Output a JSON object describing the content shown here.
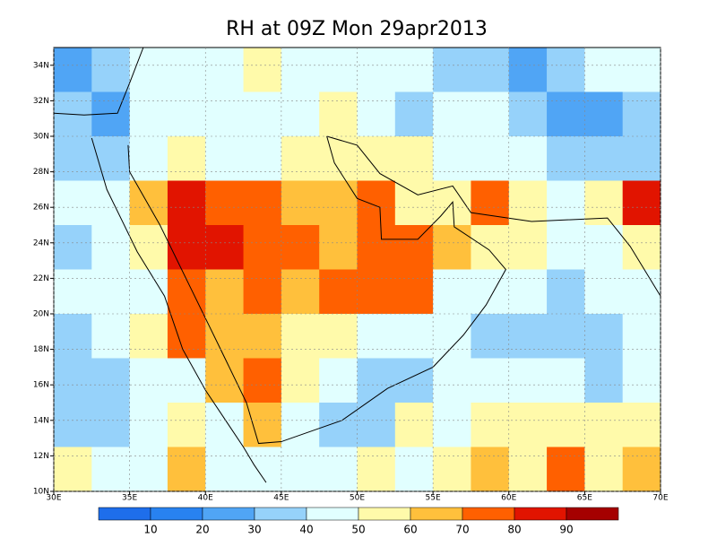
{
  "chart_data": {
    "type": "map",
    "title": "RH at 09Z Mon 29apr2013",
    "xlim": [
      30,
      70
    ],
    "ylim": [
      10,
      35
    ],
    "xticks": [
      {
        "value": 30,
        "label": "30E"
      },
      {
        "value": 35,
        "label": "35E"
      },
      {
        "value": 40,
        "label": "40E"
      },
      {
        "value": 45,
        "label": "45E"
      },
      {
        "value": 50,
        "label": "50E"
      },
      {
        "value": 55,
        "label": "55E"
      },
      {
        "value": 60,
        "label": "60E"
      },
      {
        "value": 65,
        "label": "65E"
      },
      {
        "value": 70,
        "label": "70E"
      }
    ],
    "yticks": [
      {
        "value": 10,
        "label": "10N"
      },
      {
        "value": 12,
        "label": "12N"
      },
      {
        "value": 14,
        "label": "14N"
      },
      {
        "value": 16,
        "label": "16N"
      },
      {
        "value": 18,
        "label": "18N"
      },
      {
        "value": 20,
        "label": "20N"
      },
      {
        "value": 22,
        "label": "22N"
      },
      {
        "value": 24,
        "label": "24N"
      },
      {
        "value": 26,
        "label": "26N"
      },
      {
        "value": 28,
        "label": "28N"
      },
      {
        "value": 30,
        "label": "30N"
      },
      {
        "value": 32,
        "label": "32N"
      },
      {
        "value": 34,
        "label": "34N"
      }
    ],
    "grid": true,
    "colorbar": {
      "levels": [
        10,
        20,
        30,
        40,
        50,
        60,
        70,
        80,
        90
      ],
      "colors": [
        "#1464d2",
        "#1e6eeb",
        "#2882f0",
        "#50a5f5",
        "#96d2fa",
        "#e1ffff",
        "#fffaaa",
        "#ffc03c",
        "#ff6000",
        "#e11400",
        "#a50000"
      ]
    },
    "field": {
      "values": [
        [
          25,
          30,
          45,
          40,
          45,
          50,
          45,
          40,
          40,
          45,
          35,
          30,
          25,
          30,
          40,
          45
        ],
        [
          30,
          25,
          40,
          45,
          45,
          40,
          45,
          50,
          40,
          35,
          40,
          45,
          30,
          20,
          25,
          30
        ],
        [
          35,
          30,
          45,
          50,
          45,
          45,
          55,
          55,
          55,
          50,
          45,
          40,
          40,
          30,
          30,
          35
        ],
        [
          40,
          45,
          65,
          80,
          75,
          75,
          60,
          65,
          70,
          55,
          55,
          75,
          50,
          45,
          55,
          80
        ],
        [
          35,
          40,
          55,
          80,
          80,
          70,
          75,
          60,
          70,
          75,
          65,
          55,
          50,
          45,
          45,
          55
        ],
        [
          40,
          45,
          45,
          70,
          65,
          70,
          65,
          70,
          75,
          70,
          45,
          45,
          40,
          35,
          40,
          45
        ],
        [
          35,
          40,
          50,
          75,
          65,
          60,
          55,
          55,
          40,
          45,
          40,
          35,
          35,
          30,
          35,
          40
        ],
        [
          30,
          35,
          45,
          45,
          65,
          75,
          55,
          40,
          30,
          35,
          40,
          40,
          45,
          40,
          35,
          40
        ],
        [
          30,
          35,
          40,
          55,
          45,
          60,
          45,
          30,
          35,
          50,
          40,
          50,
          55,
          55,
          50,
          55
        ],
        [
          50,
          40,
          45,
          65,
          45,
          45,
          40,
          45,
          55,
          40,
          55,
          60,
          55,
          70,
          55,
          65
        ]
      ]
    }
  }
}
